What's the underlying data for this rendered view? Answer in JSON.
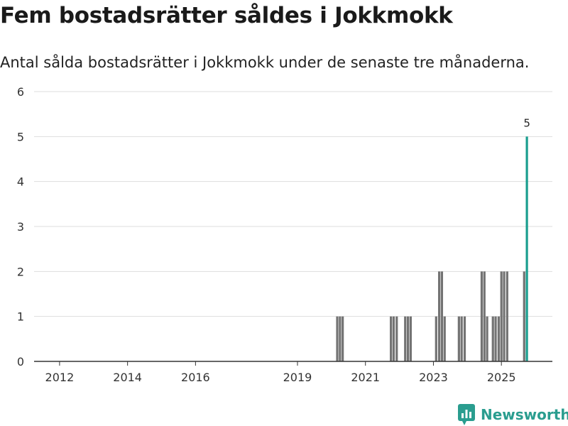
{
  "header": {
    "title": "Fem bostadsrätter såldes i Jokkmokk",
    "subtitle": "Antal sålda bostadsrätter i Jokkmokk under de senaste tre månaderna."
  },
  "brand": {
    "name": "Newsworthy"
  },
  "colors": {
    "bar": "#737373",
    "highlight": "#1a9e8f",
    "grid": "#dddddd",
    "axis": "#333333",
    "brand": "#2a9d8f"
  },
  "chart_data": {
    "type": "bar",
    "title": "Fem bostadsrätter såldes i Jokkmokk",
    "subtitle": "Antal sålda bostadsrätter i Jokkmokk under de senaste tre månaderna.",
    "xlabel": "",
    "ylabel": "",
    "xlim": [
      2011.25,
      2026.5
    ],
    "ylim": [
      0,
      6
    ],
    "yticks": [
      0,
      1,
      2,
      3,
      4,
      5,
      6
    ],
    "xticks": [
      2012,
      2014,
      2016,
      2019,
      2021,
      2023,
      2025
    ],
    "grid": true,
    "series": [
      {
        "name": "Antal sålda bostadsrätter",
        "x": [
          2020.17,
          2020.25,
          2020.33,
          2021.75,
          2021.83,
          2021.92,
          2022.17,
          2022.25,
          2022.33,
          2023.08,
          2023.17,
          2023.25,
          2023.33,
          2023.75,
          2023.83,
          2023.92,
          2024.42,
          2024.5,
          2024.58,
          2024.75,
          2024.83,
          2024.92,
          2025.0,
          2025.08,
          2025.17,
          2025.67,
          2025.75
        ],
        "values": [
          1,
          1,
          1,
          1,
          1,
          1,
          1,
          1,
          1,
          1,
          2,
          2,
          1,
          1,
          1,
          1,
          2,
          2,
          1,
          1,
          1,
          1,
          2,
          2,
          2,
          2,
          5
        ]
      }
    ],
    "highlight": {
      "x": 2025.75,
      "value": 5,
      "label": "5"
    }
  }
}
